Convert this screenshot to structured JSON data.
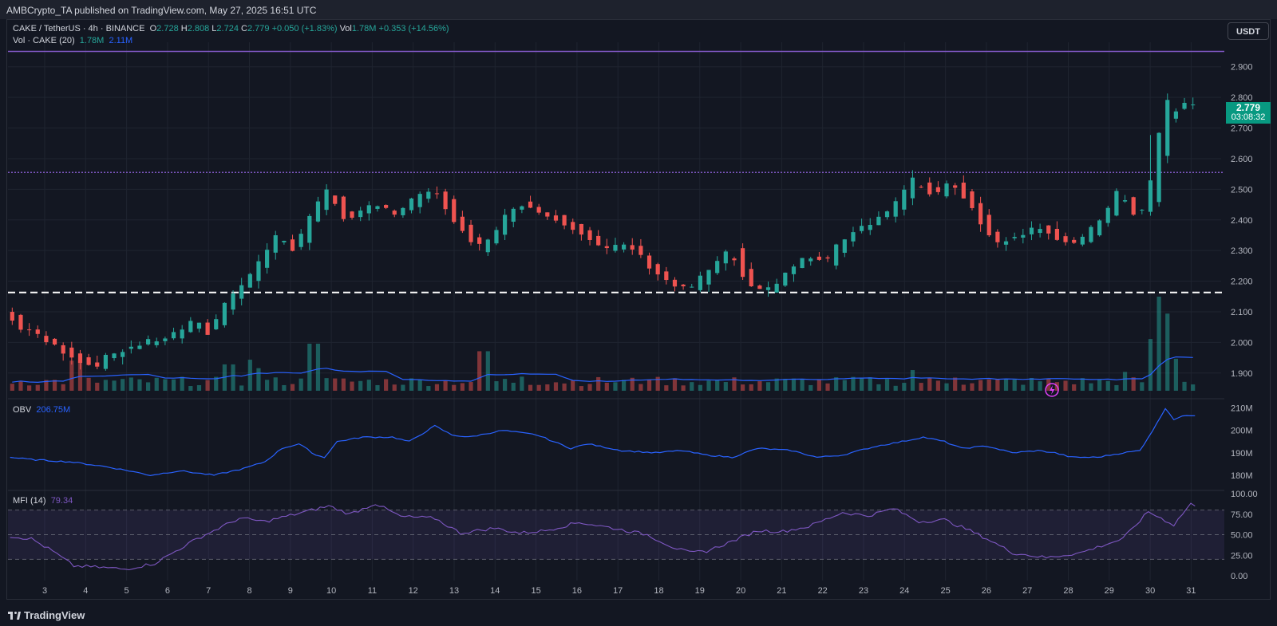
{
  "header": {
    "published_text": "AMBCrypto_TA published on TradingView.com, May 27, 2025 16:51 UTC"
  },
  "legend": {
    "symbol": "CAKE / TetherUS · 4h · BINANCE",
    "open_label": "O",
    "open": "2.728",
    "high_label": "H",
    "high": "2.808",
    "low_label": "L",
    "low": "2.724",
    "close_label": "C",
    "close": "2.779",
    "change": "+0.050 (+1.83%)",
    "vol_label": "Vol",
    "vol": "1.78M",
    "vol_change": "+0.353 (+14.56%)",
    "vol_indicator": "Vol · CAKE (20)",
    "vol_value": "1.78M",
    "vol_ma": "2.11M",
    "obv_label": "OBV",
    "obv_value": "206.75M",
    "mfi_label": "MFI (14)",
    "mfi_value": "79.34"
  },
  "toolbar": {
    "currency_button": "USDT"
  },
  "price_tag": {
    "price": "2.779",
    "countdown": "03:08:32"
  },
  "footer": {
    "brand": "TradingView"
  },
  "colors": {
    "up": "#26a69a",
    "down": "#ef5350",
    "obv": "#2962ff",
    "mfi": "#7e57c2",
    "resistance": "#7e57c2"
  },
  "chart_data": {
    "type": "candlestick",
    "symbol": "CAKE / TetherUS",
    "interval": "4h",
    "exchange": "BINANCE",
    "price_axis": {
      "ticks": [
        "2.900",
        "2.800",
        "2.700",
        "2.600",
        "2.500",
        "2.400",
        "2.300",
        "2.200",
        "2.100",
        "2.000",
        "1.900"
      ],
      "range": [
        1.85,
        2.98
      ]
    },
    "x_ticks": [
      "3",
      "4",
      "5",
      "6",
      "7",
      "8",
      "9",
      "10",
      "11",
      "12",
      "13",
      "14",
      "15",
      "16",
      "17",
      "18",
      "19",
      "20",
      "21",
      "22",
      "23",
      "24",
      "25",
      "26",
      "27",
      "28",
      "29",
      "30",
      "31"
    ],
    "levels": [
      {
        "price": 2.95,
        "style": "solid",
        "color": "#7e57c2"
      },
      {
        "price": 2.555,
        "style": "dotted",
        "color": "#7e57c2"
      },
      {
        "price": 2.163,
        "style": "dashed",
        "color": "#ffffff"
      }
    ],
    "price_path": [
      [
        2.09,
        0
      ],
      [
        2.05,
        2
      ],
      [
        2.04,
        5
      ],
      [
        2.01,
        8
      ],
      [
        1.98,
        12
      ],
      [
        1.94,
        17
      ],
      [
        1.92,
        20
      ],
      [
        1.96,
        24
      ],
      [
        1.99,
        30
      ],
      [
        2.02,
        38
      ],
      [
        2.07,
        44
      ],
      [
        2.03,
        47
      ],
      [
        2.15,
        52
      ],
      [
        2.24,
        58
      ],
      [
        2.35,
        63
      ],
      [
        2.3,
        67
      ],
      [
        2.42,
        71
      ],
      [
        2.49,
        75
      ],
      [
        2.4,
        79
      ],
      [
        2.45,
        85
      ],
      [
        2.42,
        91
      ],
      [
        2.47,
        96
      ],
      [
        2.5,
        100
      ],
      [
        2.38,
        106
      ],
      [
        2.3,
        110
      ],
      [
        2.36,
        114
      ],
      [
        2.46,
        120
      ],
      [
        2.42,
        126
      ],
      [
        2.4,
        130
      ],
      [
        2.36,
        135
      ],
      [
        2.3,
        140
      ],
      [
        2.32,
        146
      ],
      [
        2.25,
        151
      ],
      [
        2.19,
        156
      ],
      [
        2.17,
        160
      ],
      [
        2.25,
        166
      ],
      [
        2.3,
        170
      ],
      [
        2.18,
        174
      ],
      [
        2.16,
        178
      ],
      [
        2.24,
        184
      ],
      [
        2.28,
        188
      ],
      [
        2.26,
        192
      ],
      [
        2.36,
        198
      ],
      [
        2.4,
        204
      ],
      [
        2.44,
        208
      ],
      [
        2.53,
        213
      ],
      [
        2.48,
        218
      ],
      [
        2.53,
        222
      ],
      [
        2.42,
        228
      ],
      [
        2.32,
        232
      ],
      [
        2.35,
        237
      ],
      [
        2.38,
        243
      ],
      [
        2.33,
        248
      ],
      [
        2.32,
        252
      ],
      [
        2.4,
        257
      ],
      [
        2.49,
        261
      ],
      [
        2.42,
        265
      ],
      [
        2.45,
        268
      ],
      [
        2.68,
        271
      ],
      [
        2.79,
        273
      ],
      [
        2.75,
        275
      ],
      [
        2.78,
        277
      ]
    ],
    "volume_series": {
      "name": "Vol · CAKE (20)",
      "ma_name": "MA",
      "last": "1.78M",
      "ma_last": "2.11M",
      "spikes": [
        [
          15,
          0.32
        ],
        [
          51,
          0.28
        ],
        [
          56,
          0.33
        ],
        [
          57,
          0.24
        ],
        [
          71,
          0.5
        ],
        [
          111,
          0.42
        ],
        [
          120,
          0.15
        ],
        [
          151,
          0.12
        ],
        [
          201,
          0.14
        ],
        [
          212,
          0.22
        ],
        [
          222,
          0.14
        ],
        [
          262,
          0.2
        ],
        [
          268,
          0.55
        ],
        [
          270,
          1.0
        ],
        [
          271,
          0.82
        ],
        [
          272,
          0.55
        ],
        [
          273,
          0.34
        ]
      ]
    },
    "obv": {
      "name": "OBV",
      "last": "206.75M",
      "ticks": [
        "210M",
        "200M",
        "190M",
        "180M"
      ],
      "range": [
        175,
        212
      ],
      "path": [
        [
          188,
          0
        ],
        [
          187,
          5
        ],
        [
          186,
          14
        ],
        [
          184,
          22
        ],
        [
          182,
          28
        ],
        [
          180,
          33
        ],
        [
          182,
          40
        ],
        [
          180,
          48
        ],
        [
          183,
          55
        ],
        [
          186,
          60
        ],
        [
          192,
          64
        ],
        [
          194,
          68
        ],
        [
          189,
          72
        ],
        [
          188,
          74
        ],
        [
          195,
          77
        ],
        [
          197,
          83
        ],
        [
          197,
          90
        ],
        [
          195,
          94
        ],
        [
          202,
          100
        ],
        [
          198,
          104
        ],
        [
          197,
          108
        ],
        [
          200,
          116
        ],
        [
          198,
          124
        ],
        [
          192,
          132
        ],
        [
          194,
          136
        ],
        [
          191,
          144
        ],
        [
          190,
          152
        ],
        [
          191,
          158
        ],
        [
          189,
          164
        ],
        [
          188,
          170
        ],
        [
          192,
          176
        ],
        [
          191,
          184
        ],
        [
          188,
          190
        ],
        [
          189,
          196
        ],
        [
          193,
          204
        ],
        [
          195,
          210
        ],
        [
          197,
          215
        ],
        [
          195,
          220
        ],
        [
          192,
          224
        ],
        [
          193,
          230
        ],
        [
          190,
          236
        ],
        [
          191,
          242
        ],
        [
          190,
          246
        ],
        [
          188,
          250
        ],
        [
          188,
          256
        ],
        [
          190,
          262
        ],
        [
          191,
          266
        ],
        [
          203,
          270
        ],
        [
          210,
          272
        ],
        [
          205,
          274
        ],
        [
          206.75,
          277
        ]
      ]
    },
    "mfi": {
      "name": "MFI (14)",
      "last": "79.34",
      "ticks": [
        "100.00",
        "75.00",
        "50.00",
        "25.00",
        "0.00"
      ],
      "bands": [
        20,
        80
      ],
      "path": [
        [
          48,
          0
        ],
        [
          45,
          5
        ],
        [
          30,
          10
        ],
        [
          12,
          15
        ],
        [
          10,
          22
        ],
        [
          8,
          27
        ],
        [
          15,
          34
        ],
        [
          45,
          44
        ],
        [
          70,
          54
        ],
        [
          66,
          60
        ],
        [
          76,
          68
        ],
        [
          85,
          75
        ],
        [
          75,
          80
        ],
        [
          88,
          86
        ],
        [
          72,
          92
        ],
        [
          70,
          100
        ],
        [
          52,
          106
        ],
        [
          58,
          114
        ],
        [
          52,
          120
        ],
        [
          55,
          126
        ],
        [
          65,
          134
        ],
        [
          58,
          142
        ],
        [
          50,
          150
        ],
        [
          35,
          156
        ],
        [
          28,
          160
        ],
        [
          30,
          164
        ],
        [
          42,
          170
        ],
        [
          55,
          176
        ],
        [
          54,
          182
        ],
        [
          60,
          188
        ],
        [
          77,
          196
        ],
        [
          73,
          202
        ],
        [
          82,
          208
        ],
        [
          66,
          214
        ],
        [
          68,
          220
        ],
        [
          55,
          226
        ],
        [
          45,
          230
        ],
        [
          28,
          236
        ],
        [
          22,
          244
        ],
        [
          28,
          252
        ],
        [
          45,
          262
        ],
        [
          78,
          268
        ],
        [
          62,
          274
        ],
        [
          88,
          278
        ],
        [
          79.34,
          280
        ]
      ]
    }
  }
}
